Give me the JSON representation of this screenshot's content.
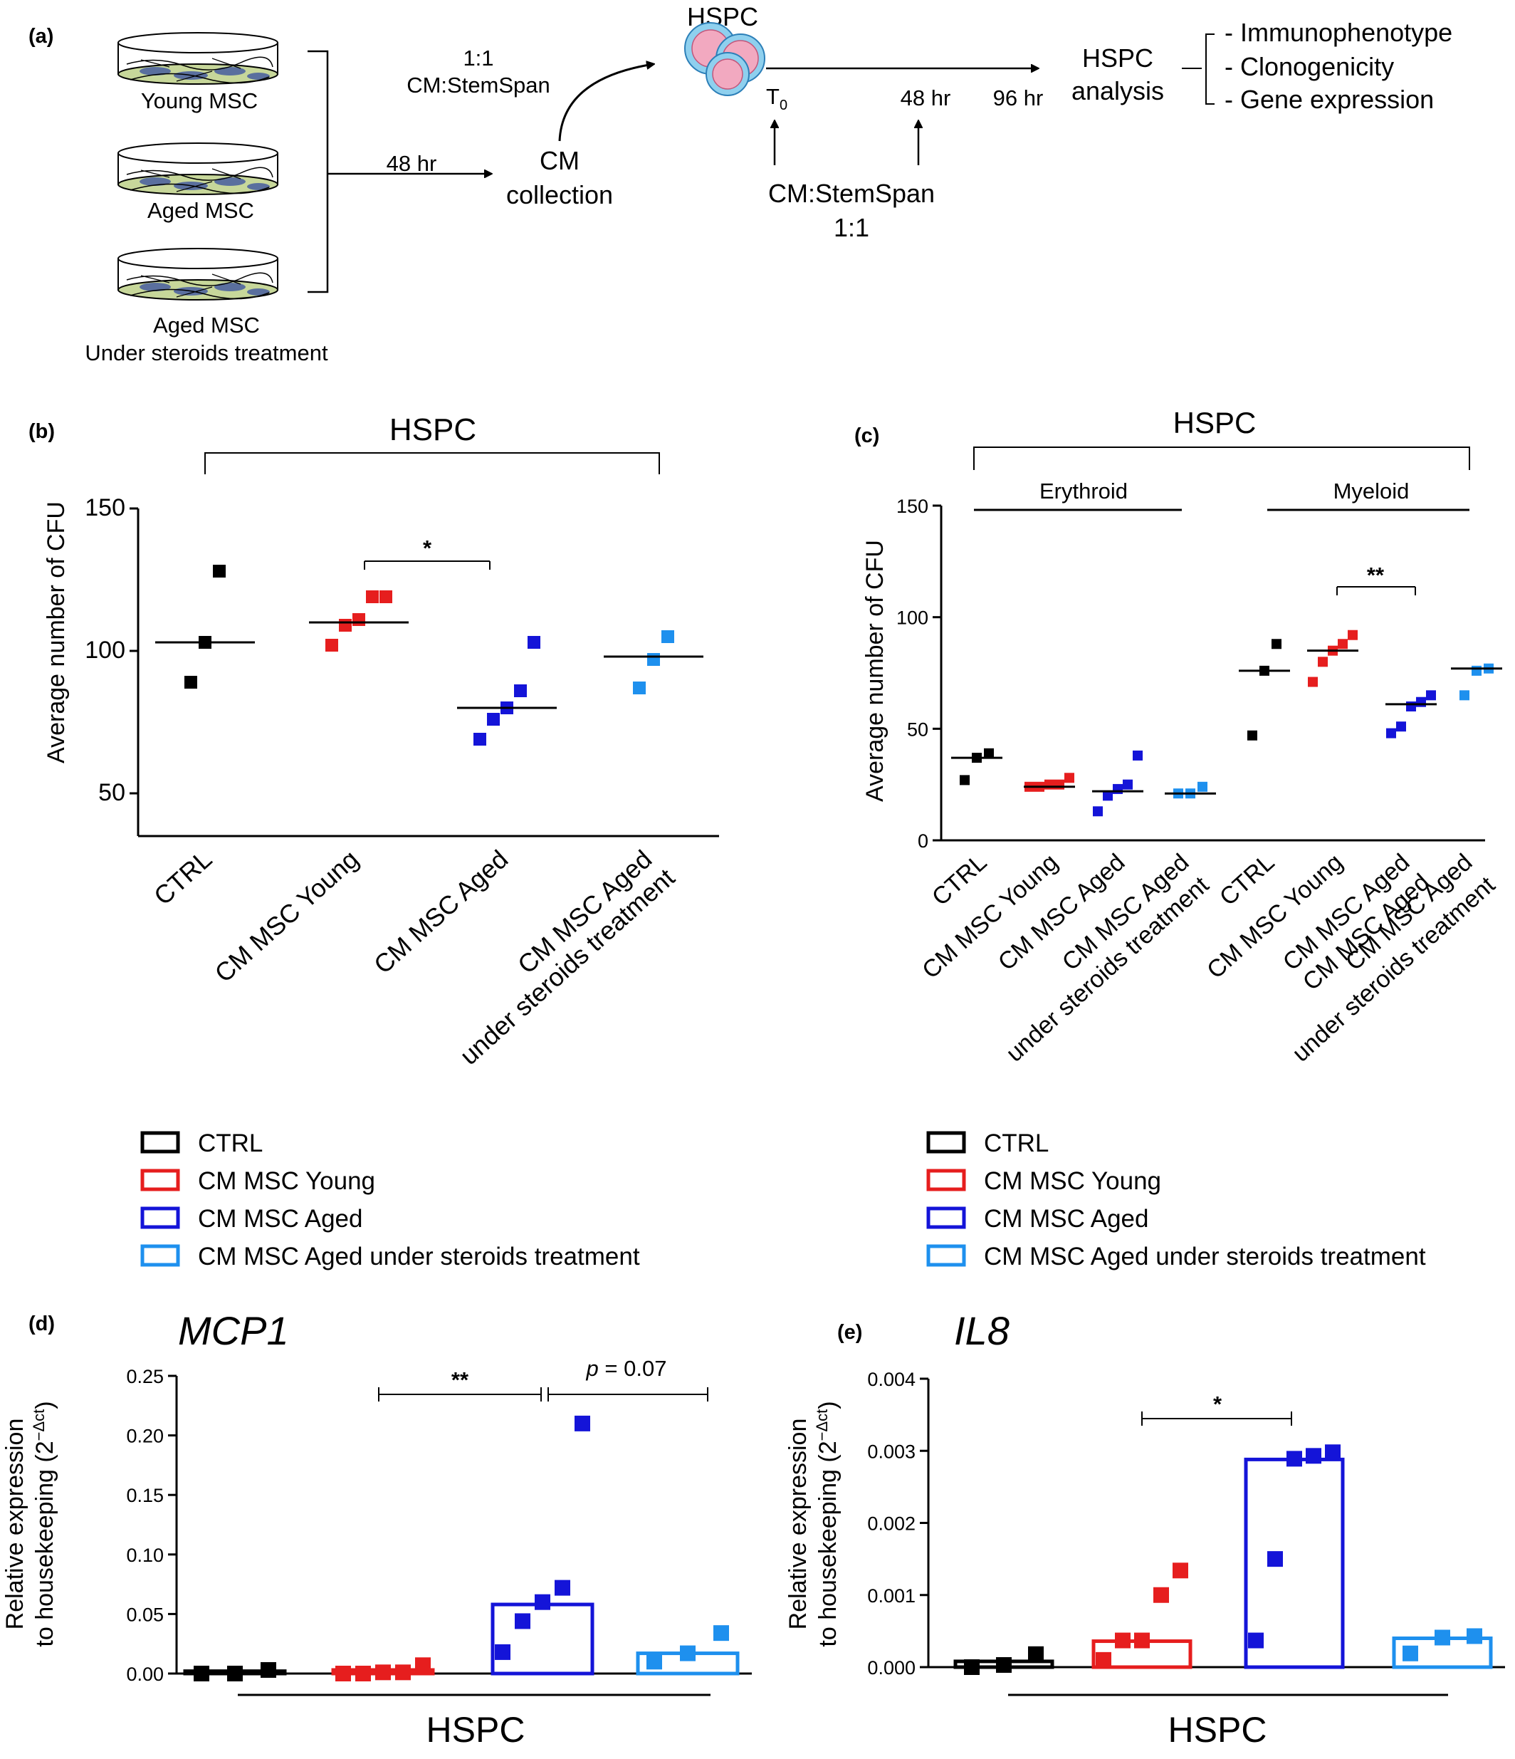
{
  "colors": {
    "ctrl": "#000000",
    "young": "#e61e1e",
    "aged": "#1414d8",
    "steroids": "#1e90ee"
  },
  "panel_a": {
    "label": "(a)",
    "dish_labels": [
      "Young MSC",
      "Aged MSC",
      "Aged MSC",
      "Under steroids treatment"
    ],
    "arrow_48": "48 hr",
    "cm_collection": [
      "CM",
      "collection"
    ],
    "ratio_top": [
      "1:1",
      "CM:StemSpan"
    ],
    "hspc_title": "HSPC",
    "t0": "T",
    "t0_sub": "0",
    "t48": "48 hr",
    "t96": "96 hr",
    "ratio_bottom": [
      "CM:StemSpan",
      "1:1"
    ],
    "analysis": [
      "HSPC",
      "analysis"
    ],
    "analysis_items": [
      "- Immunophenotype",
      "- Clonogenicity",
      "- Gene expression"
    ]
  },
  "panel_b": {
    "label": "(b)",
    "group_title": "HSPC",
    "significance": "*"
  },
  "panel_c": {
    "label": "(c)",
    "group_title": "HSPC",
    "subgroups": [
      "Erythroid",
      "Myeloid"
    ],
    "significance": "**"
  },
  "panel_d": {
    "label": "(d)",
    "gene": "MCP1",
    "significance": "**",
    "p_prefix": "p",
    "p_value": " = 0.07",
    "bottom": "HSPC"
  },
  "panel_e": {
    "label": "(e)",
    "gene": "IL8",
    "significance": "*",
    "bottom": "HSPC"
  },
  "legend": [
    {
      "label": "CTRL",
      "color": "#000000"
    },
    {
      "label": "CM MSC Young",
      "color": "#e61e1e"
    },
    {
      "label": "CM MSC Aged",
      "color": "#1414d8"
    },
    {
      "label": "CM MSC Aged under steroids treatment",
      "color": "#1e90ee"
    }
  ],
  "chart_data": [
    {
      "panel": "b",
      "type": "scatter",
      "title": "HSPC",
      "ylabel": "Average number of CFU",
      "ylim": [
        35,
        150
      ],
      "yticks": [
        50,
        100,
        150
      ],
      "categories": [
        "CTRL",
        "CM MSC Young",
        "CM MSC Aged",
        "CM MSC Aged under steroids treatment"
      ],
      "points": [
        [
          89,
          103,
          128
        ],
        [
          102,
          109,
          111,
          119,
          119
        ],
        [
          69,
          76,
          80,
          86,
          103
        ],
        [
          87,
          97,
          105
        ]
      ],
      "medians": [
        103,
        110,
        80,
        98
      ]
    },
    {
      "panel": "c",
      "type": "scatter",
      "title": "HSPC",
      "ylabel": "Average number of CFU",
      "ylim": [
        0,
        150
      ],
      "yticks": [
        0,
        50,
        100,
        150
      ],
      "categories": [
        "CTRL",
        "CM MSC Young",
        "CM MSC Aged",
        "CM MSC Aged under steroids treatment",
        "CTRL",
        "CM MSC Young",
        "CM MSC Aged",
        "CM MSC Aged under steroids treatment"
      ],
      "points": [
        [
          27,
          37,
          39
        ],
        [
          24,
          24,
          25,
          25,
          28
        ],
        [
          13,
          20,
          23,
          25,
          38
        ],
        [
          21,
          21,
          24
        ],
        [
          47,
          76,
          88
        ],
        [
          71,
          80,
          85,
          88,
          92
        ],
        [
          48,
          51,
          60,
          62,
          65
        ],
        [
          65,
          76,
          77
        ]
      ],
      "medians": [
        37,
        24,
        22,
        21,
        76,
        85,
        61,
        77
      ]
    },
    {
      "panel": "d",
      "type": "bar",
      "title": "MCP1",
      "ylabel": "Relative expression to housekeeping (2−Δct)",
      "ylim": [
        0,
        0.25
      ],
      "yticks": [
        0.0,
        0.05,
        0.1,
        0.15,
        0.2,
        0.25
      ],
      "categories": [
        "CTRL",
        "CM MSC Young",
        "CM MSC Aged",
        "CM MSC Aged under steroids treatment"
      ],
      "values": [
        0.002,
        0.003,
        0.058,
        0.017
      ],
      "points": [
        [
          0.0,
          0.0,
          0.003
        ],
        [
          0.0,
          0.0,
          0.001,
          0.001,
          0.007
        ],
        [
          0.018,
          0.044,
          0.06,
          0.072,
          0.21
        ],
        [
          0.01,
          0.017,
          0.034
        ]
      ]
    },
    {
      "panel": "e",
      "type": "bar",
      "title": "IL8",
      "ylabel": "Relative expression to housekeeping (2−Δct)",
      "ylim": [
        0,
        0.004
      ],
      "yticks": [
        0.0,
        0.001,
        0.002,
        0.003,
        0.004
      ],
      "categories": [
        "CTRL",
        "CM MSC Young",
        "CM MSC Aged",
        "CM MSC Aged under steroids treatment"
      ],
      "values": [
        8e-05,
        0.00036,
        0.00288,
        0.0004
      ],
      "points": [
        [
          0.0,
          3e-05,
          0.00018
        ],
        [
          0.0001,
          0.00037,
          0.00037,
          0.001,
          0.00134
        ],
        [
          0.00037,
          0.0015,
          0.00289,
          0.00293,
          0.00298
        ],
        [
          0.00019,
          0.00041,
          0.00043
        ]
      ]
    }
  ]
}
